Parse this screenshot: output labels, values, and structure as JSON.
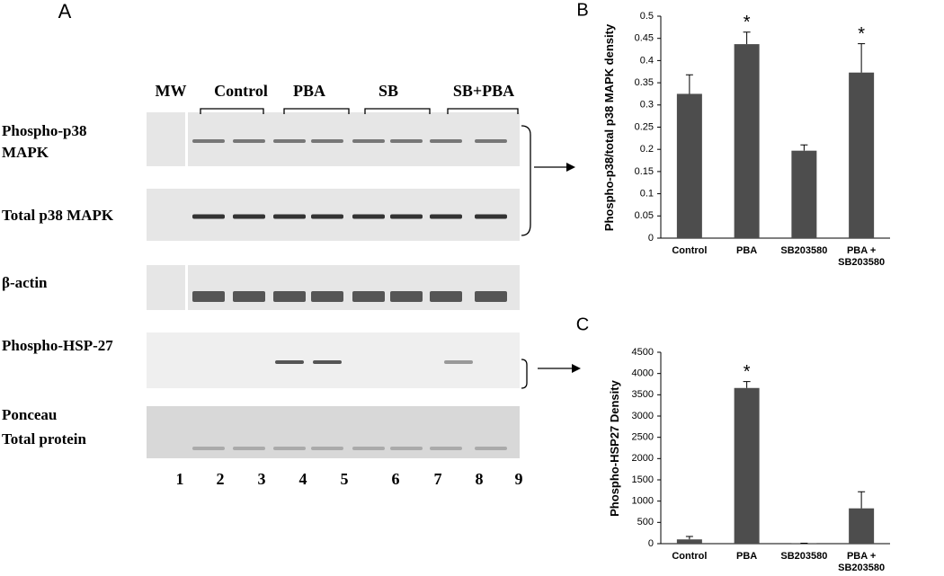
{
  "panel_a": {
    "letter": "A",
    "groups": [
      "MW",
      "Control",
      "PBA",
      "SB",
      "SB+PBA"
    ],
    "rows": [
      [
        "Phospho-p38",
        "MAPK"
      ],
      [
        "Total p38 MAPK"
      ],
      [
        "β-actin"
      ],
      [
        "Phospho-HSP-27"
      ],
      [
        "Ponceau",
        "Total protein"
      ]
    ],
    "lanes": [
      1,
      2,
      3,
      4,
      5,
      6,
      7,
      8,
      9
    ]
  },
  "chart_data": [
    {
      "type": "bar",
      "letter": "B",
      "ylabel": "Phospho-p38/total p38 MAPK density",
      "categories": [
        "Control",
        "PBA",
        "SB203580",
        "PBA + SB203580"
      ],
      "values": [
        0.325,
        0.437,
        0.197,
        0.373
      ],
      "errors": [
        0.043,
        0.027,
        0.013,
        0.065
      ],
      "significance": [
        null,
        "*",
        null,
        "*"
      ],
      "color": "#4d4d4d",
      "ylim": [
        0,
        0.5
      ],
      "yticks": [
        0,
        0.05,
        0.1,
        0.15,
        0.2,
        0.25,
        0.3,
        0.35,
        0.4,
        0.45,
        0.5
      ]
    },
    {
      "type": "bar",
      "letter": "C",
      "ylabel": "Phospho-HSP27 Density",
      "categories": [
        "Control",
        "PBA",
        "SB203580",
        "PBA + SB203580"
      ],
      "values": [
        100,
        3660,
        5,
        830
      ],
      "errors": [
        70,
        150,
        5,
        390
      ],
      "significance": [
        null,
        "*",
        null,
        null
      ],
      "color": "#4d4d4d",
      "ylim": [
        0,
        4500
      ],
      "yticks": [
        0,
        500,
        1000,
        1500,
        2000,
        2500,
        3000,
        3500,
        4000,
        4500
      ]
    }
  ]
}
